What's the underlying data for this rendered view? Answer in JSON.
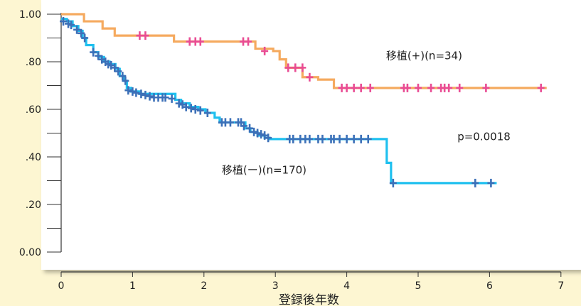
{
  "chart_data": {
    "type": "line",
    "subtype": "kaplan-meier step",
    "title": "",
    "xlabel": "登録後年数",
    "ylabel": "",
    "xlim": [
      0,
      7
    ],
    "ylim": [
      0,
      1.0
    ],
    "x_ticks": [
      0,
      1,
      2,
      3,
      4,
      5,
      6,
      7
    ],
    "x_tick_labels": [
      "0",
      "1",
      "2",
      "3",
      "4",
      "5",
      "6",
      "7"
    ],
    "y_ticks": [
      0,
      0.1,
      0.2,
      0.3,
      0.4,
      0.5,
      0.6,
      0.7,
      0.8,
      0.9,
      1.0
    ],
    "y_tick_labels": [
      "0.00",
      "",
      ".20",
      "",
      ".40",
      "",
      ".60",
      "",
      ".80",
      "",
      "1.00"
    ],
    "grid": false,
    "legend": "none",
    "annotations": [
      {
        "text": "移植(+)(n=34)",
        "x": 4.55,
        "y": 0.81,
        "series": "transplant_plus"
      },
      {
        "text": "移植(ー)(n=170)",
        "x": 2.25,
        "y": 0.33,
        "series": "transplant_minus"
      },
      {
        "text": "p=0.0018",
        "x": 5.55,
        "y": 0.47
      }
    ],
    "series": [
      {
        "key": "transplant_plus",
        "color": "#f5aa5f",
        "censor_color": "#e94c94",
        "steps": [
          [
            0,
            1.0
          ],
          [
            0.32,
            0.97
          ],
          [
            0.58,
            0.94
          ],
          [
            0.75,
            0.91
          ],
          [
            1.58,
            0.885
          ],
          [
            2.72,
            0.855
          ],
          [
            2.97,
            0.845
          ],
          [
            3.06,
            0.81
          ],
          [
            3.15,
            0.775
          ],
          [
            3.38,
            0.735
          ],
          [
            3.6,
            0.725
          ],
          [
            3.82,
            0.69
          ],
          [
            6.8,
            0.69
          ]
        ],
        "censors": [
          [
            1.1,
            0.91
          ],
          [
            1.18,
            0.91
          ],
          [
            1.8,
            0.885
          ],
          [
            1.88,
            0.885
          ],
          [
            1.95,
            0.885
          ],
          [
            2.55,
            0.885
          ],
          [
            2.62,
            0.885
          ],
          [
            2.85,
            0.845
          ],
          [
            3.18,
            0.775
          ],
          [
            3.28,
            0.775
          ],
          [
            3.38,
            0.775
          ],
          [
            3.48,
            0.735
          ],
          [
            3.93,
            0.69
          ],
          [
            4.0,
            0.69
          ],
          [
            4.1,
            0.69
          ],
          [
            4.2,
            0.69
          ],
          [
            4.33,
            0.69
          ],
          [
            4.8,
            0.69
          ],
          [
            4.85,
            0.69
          ],
          [
            5.0,
            0.69
          ],
          [
            5.18,
            0.69
          ],
          [
            5.32,
            0.69
          ],
          [
            5.37,
            0.69
          ],
          [
            5.43,
            0.69
          ],
          [
            5.58,
            0.69
          ],
          [
            5.95,
            0.69
          ],
          [
            6.72,
            0.69
          ]
        ]
      },
      {
        "key": "transplant_minus",
        "color": "#1ec0ef",
        "censor_color": "#3c70b8",
        "steps": [
          [
            0,
            0.98
          ],
          [
            0.08,
            0.97
          ],
          [
            0.16,
            0.95
          ],
          [
            0.24,
            0.93
          ],
          [
            0.3,
            0.9
          ],
          [
            0.35,
            0.87
          ],
          [
            0.45,
            0.84
          ],
          [
            0.52,
            0.82
          ],
          [
            0.6,
            0.8
          ],
          [
            0.68,
            0.79
          ],
          [
            0.76,
            0.77
          ],
          [
            0.82,
            0.74
          ],
          [
            0.88,
            0.72
          ],
          [
            0.92,
            0.69
          ],
          [
            0.98,
            0.675
          ],
          [
            1.1,
            0.665
          ],
          [
            1.6,
            0.64
          ],
          [
            1.68,
            0.625
          ],
          [
            1.8,
            0.61
          ],
          [
            1.92,
            0.6
          ],
          [
            2.02,
            0.585
          ],
          [
            2.15,
            0.565
          ],
          [
            2.22,
            0.545
          ],
          [
            2.58,
            0.52
          ],
          [
            2.65,
            0.505
          ],
          [
            2.75,
            0.49
          ],
          [
            2.85,
            0.48
          ],
          [
            2.92,
            0.475
          ],
          [
            4.55,
            0.475
          ],
          [
            4.56,
            0.375
          ],
          [
            4.62,
            0.29
          ],
          [
            6.1,
            0.29
          ]
        ],
        "censors": [
          [
            0.03,
            0.97
          ],
          [
            0.1,
            0.96
          ],
          [
            0.14,
            0.955
          ],
          [
            0.22,
            0.935
          ],
          [
            0.28,
            0.92
          ],
          [
            0.33,
            0.9
          ],
          [
            0.45,
            0.84
          ],
          [
            0.52,
            0.825
          ],
          [
            0.57,
            0.81
          ],
          [
            0.62,
            0.8
          ],
          [
            0.66,
            0.79
          ],
          [
            0.7,
            0.785
          ],
          [
            0.75,
            0.775
          ],
          [
            0.8,
            0.76
          ],
          [
            0.86,
            0.74
          ],
          [
            0.9,
            0.72
          ],
          [
            0.94,
            0.68
          ],
          [
            1.0,
            0.675
          ],
          [
            1.05,
            0.67
          ],
          [
            1.12,
            0.665
          ],
          [
            1.18,
            0.66
          ],
          [
            1.24,
            0.655
          ],
          [
            1.3,
            0.65
          ],
          [
            1.36,
            0.65
          ],
          [
            1.42,
            0.65
          ],
          [
            1.46,
            0.65
          ],
          [
            1.55,
            0.645
          ],
          [
            1.65,
            0.625
          ],
          [
            1.7,
            0.62
          ],
          [
            1.75,
            0.61
          ],
          [
            1.82,
            0.605
          ],
          [
            1.88,
            0.6
          ],
          [
            1.95,
            0.595
          ],
          [
            2.05,
            0.585
          ],
          [
            2.25,
            0.545
          ],
          [
            2.3,
            0.545
          ],
          [
            2.37,
            0.545
          ],
          [
            2.48,
            0.545
          ],
          [
            2.52,
            0.545
          ],
          [
            2.56,
            0.53
          ],
          [
            2.64,
            0.52
          ],
          [
            2.7,
            0.505
          ],
          [
            2.75,
            0.5
          ],
          [
            2.8,
            0.495
          ],
          [
            2.85,
            0.49
          ],
          [
            2.9,
            0.48
          ],
          [
            3.2,
            0.475
          ],
          [
            3.25,
            0.475
          ],
          [
            3.35,
            0.475
          ],
          [
            3.42,
            0.475
          ],
          [
            3.48,
            0.475
          ],
          [
            3.6,
            0.475
          ],
          [
            3.66,
            0.475
          ],
          [
            3.78,
            0.475
          ],
          [
            3.82,
            0.475
          ],
          [
            3.9,
            0.475
          ],
          [
            4.0,
            0.475
          ],
          [
            4.1,
            0.475
          ],
          [
            4.2,
            0.475
          ],
          [
            4.3,
            0.475
          ],
          [
            4.65,
            0.29
          ],
          [
            5.8,
            0.29
          ],
          [
            6.02,
            0.29
          ]
        ]
      }
    ]
  }
}
